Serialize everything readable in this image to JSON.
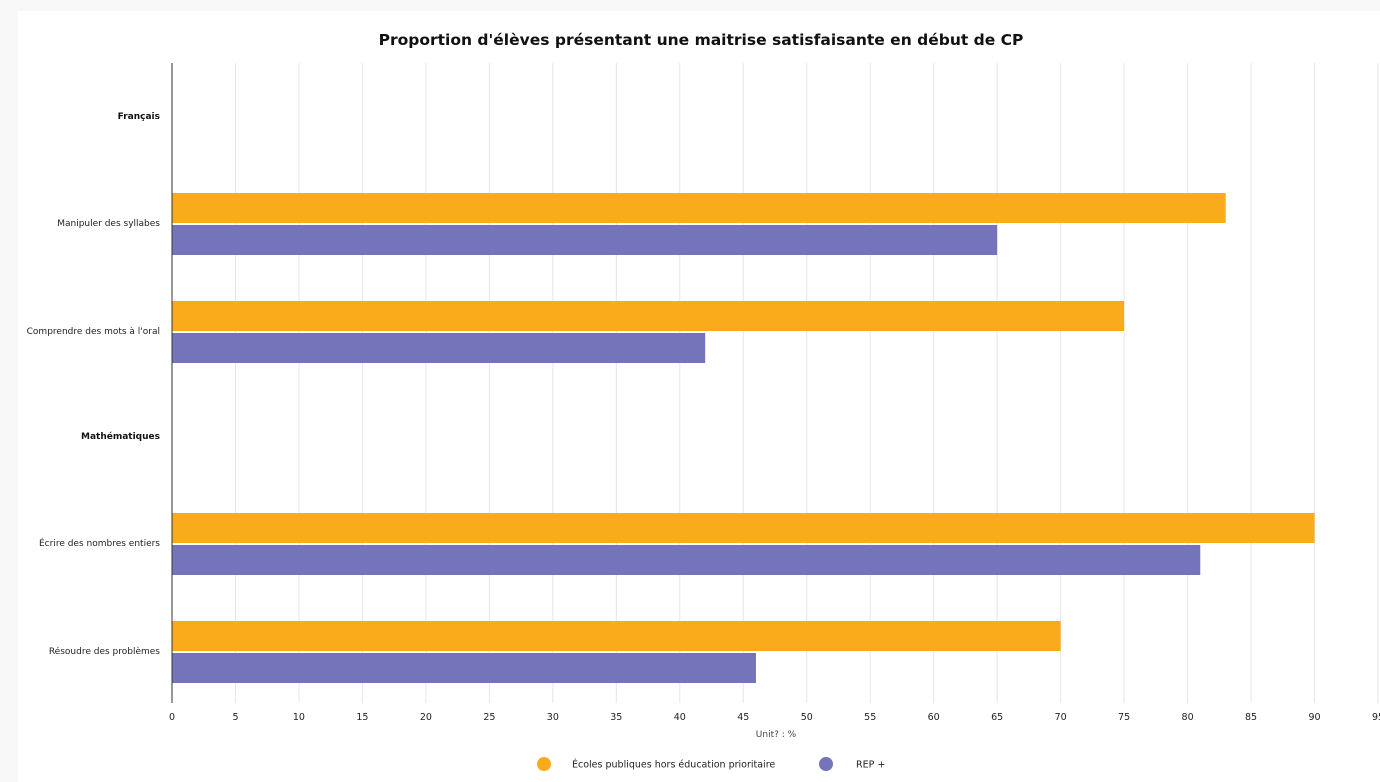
{
  "chart_data": {
    "type": "bar",
    "orientation": "horizontal",
    "title": "Proportion d'élèves présentant une maitrise satisfaisante en début de CP",
    "xlabel": "Unit? : %",
    "ylabel": "",
    "xlim": [
      0,
      95
    ],
    "xticks": [
      0,
      5,
      10,
      15,
      20,
      25,
      30,
      35,
      40,
      45,
      50,
      55,
      60,
      65,
      70,
      75,
      80,
      85,
      90,
      95
    ],
    "grid": true,
    "legend_position": "bottom",
    "categories": [
      "Français",
      "Manipuler des syllabes",
      "Comprendre des mots à l'oral",
      "Mathématiques",
      "Écrire des nombres entiers",
      "Résoudre des problèmes"
    ],
    "header_categories": [
      "Français",
      "Mathématiques"
    ],
    "series": [
      {
        "name": "Écoles publiques hors éducation prioritaire",
        "color": "#f9ab1c",
        "values": [
          null,
          83,
          75,
          null,
          90,
          70
        ]
      },
      {
        "name": "REP +",
        "color": "#7574ba",
        "values": [
          null,
          65,
          42,
          null,
          81,
          46
        ]
      }
    ]
  }
}
